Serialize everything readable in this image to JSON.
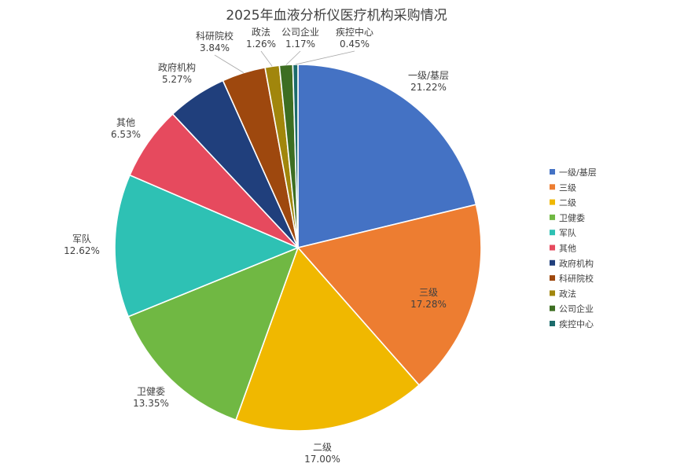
{
  "chart_data": {
    "type": "pie",
    "title": "2025年血液分析仪医疗机构采购情况",
    "legend_position": "right",
    "slices": [
      {
        "name": "一级/基层",
        "value": 21.22,
        "label": "21.22%",
        "color": "#4472C4"
      },
      {
        "name": "三级",
        "value": 17.28,
        "label": "17.28%",
        "color": "#ED7D31"
      },
      {
        "name": "二级",
        "value": 17.0,
        "label": "17.00%",
        "color": "#F0B800"
      },
      {
        "name": "卫健委",
        "value": 13.35,
        "label": "13.35%",
        "color": "#70B843"
      },
      {
        "name": "军队",
        "value": 12.62,
        "label": "12.62%",
        "color": "#2EC1B4"
      },
      {
        "name": "其他",
        "value": 6.53,
        "label": "6.53%",
        "color": "#E64A5E"
      },
      {
        "name": "政府机构",
        "value": 5.27,
        "label": "5.27%",
        "color": "#203F7C"
      },
      {
        "name": "科研院校",
        "value": 3.84,
        "label": "3.84%",
        "color": "#9E480E"
      },
      {
        "name": "政法",
        "value": 1.26,
        "label": "1.26%",
        "color": "#A1860C"
      },
      {
        "name": "公司企业",
        "value": 1.17,
        "label": "1.17%",
        "color": "#3D6E22"
      },
      {
        "name": "疾控中心",
        "value": 0.45,
        "label": "0.45%",
        "color": "#1B6B6B"
      }
    ]
  }
}
